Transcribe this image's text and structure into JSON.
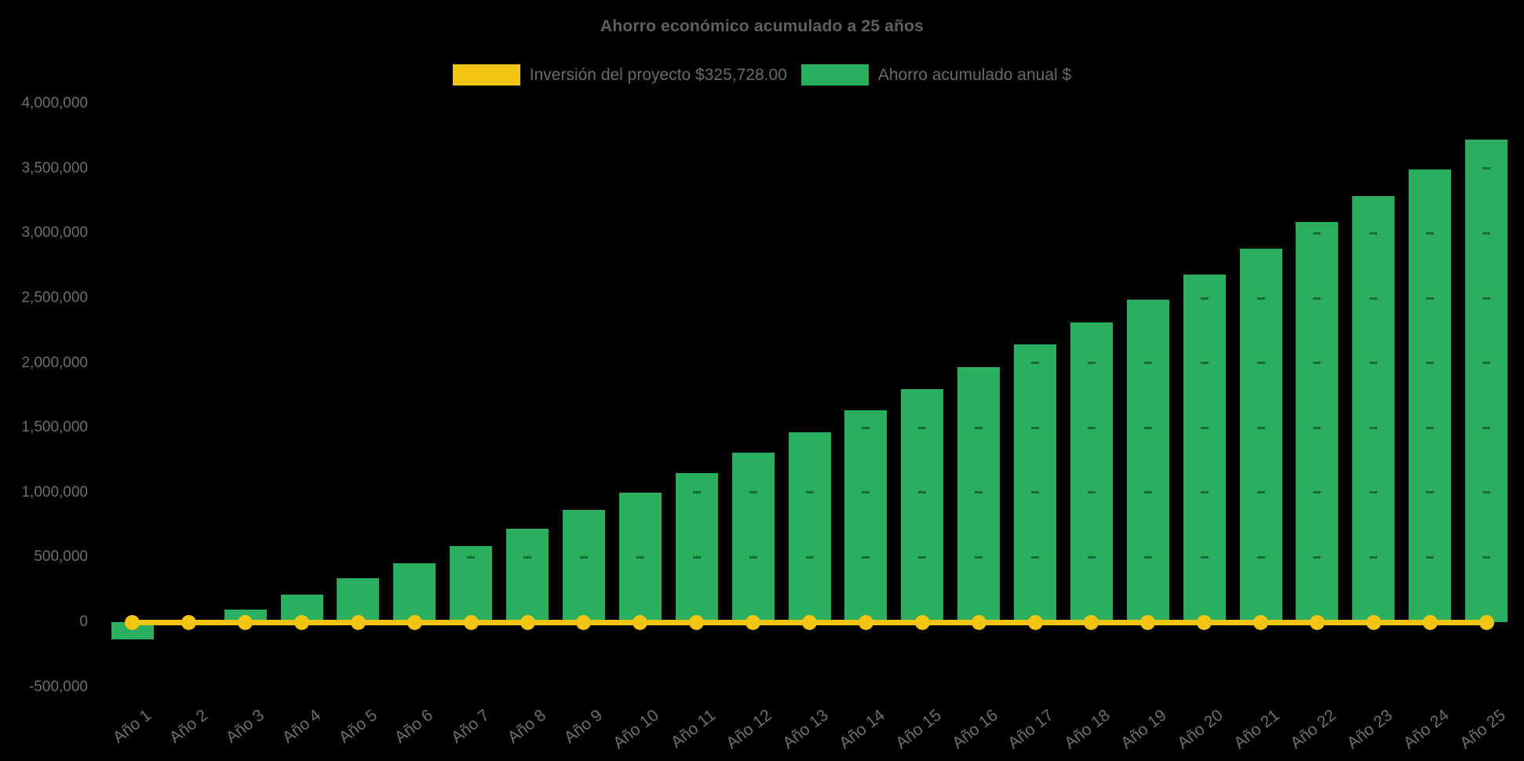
{
  "title": "Ahorro económico acumulado a 25 años",
  "legend": [
    {
      "label": "Inversión del proyecto $325,728.00",
      "color": "#F2C513"
    },
    {
      "label": "Ahorro acumulado anual $",
      "color": "#2BAE5E"
    }
  ],
  "colors": {
    "background": "#000000",
    "bar_green": "#2BAE5E",
    "line_yellow": "#F2C513",
    "axis_text": "#6E6E6E",
    "title_text": "#5F5F5F"
  },
  "chart_data": {
    "type": "bar",
    "title": "Ahorro económico acumulado a 25 años",
    "categories": [
      "Año 1",
      "Año 2",
      "Año 3",
      "Año 4",
      "Año 5",
      "Año 6",
      "Año 7",
      "Año 8",
      "Año 9",
      "Año 10",
      "Año 11",
      "Año 12",
      "Año 13",
      "Año 14",
      "Año 15",
      "Año 16",
      "Año 17",
      "Año 18",
      "Año 19",
      "Año 20",
      "Año 21",
      "Año 22",
      "Año 23",
      "Año 24",
      "Año 25"
    ],
    "series": [
      {
        "name": "Ahorro acumulado anual $",
        "type": "bar",
        "color": "#2BAE5E",
        "values": [
          -135000,
          15000,
          95000,
          210000,
          340000,
          455000,
          590000,
          720000,
          865000,
          1000000,
          1150000,
          1305000,
          1465000,
          1635000,
          1795000,
          1970000,
          2140000,
          2310000,
          2490000,
          2680000,
          2880000,
          3090000,
          3285000,
          3495000,
          3725000
        ]
      },
      {
        "name": "Inversión del proyecto $325,728.00",
        "type": "line",
        "color": "#F2C513",
        "value": 325728,
        "value_label": "$325,728.00",
        "rendered_at_value": 0,
        "note": "flat line with round point markers drawn along the zero baseline"
      }
    ],
    "xlabel": "",
    "ylabel": "",
    "ylim": [
      -500000,
      4000000
    ],
    "ytick_step": 500000,
    "ytick_labels": [
      "4,000,000",
      "3,500,000",
      "3,000,000",
      "2,500,000",
      "2,000,000",
      "1,500,000",
      "1,000,000",
      "500,000",
      "0",
      "-500,000"
    ],
    "grid": "off (faint dark dashes over bars at 500k levels)",
    "legend_position": "top"
  }
}
